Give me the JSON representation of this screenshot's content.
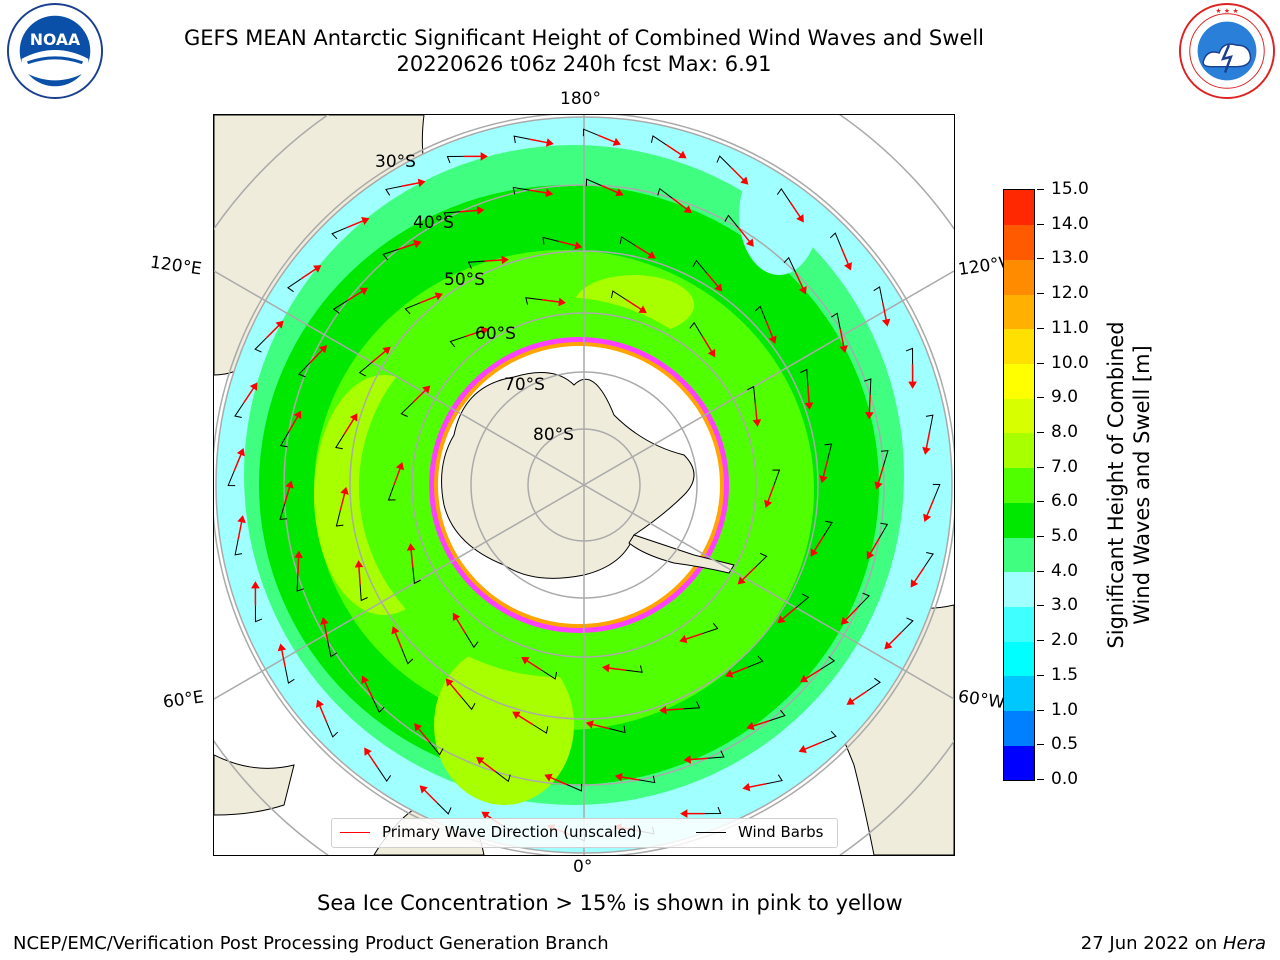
{
  "title": {
    "line1": "GEFS MEAN Antarctic Significant Height of Combined Wind Waves and Swell",
    "line2": "20220626 t06z 240h fcst   Max: 6.91"
  },
  "logos": {
    "left": {
      "icon": "noaa-logo",
      "text": "NOAA"
    },
    "right": {
      "icon": "nws-logo"
    }
  },
  "map": {
    "projection": "south-polar-stereographic",
    "longitude_labels": {
      "top": "180°",
      "bottom": "0°",
      "upper_left": "120°E",
      "upper_right": "120°W",
      "lower_left": "60°E",
      "lower_right": "60°W"
    },
    "latitude_labels": [
      "30°S",
      "40°S",
      "50°S",
      "60°S",
      "70°S",
      "80°S"
    ],
    "land_color": "#efecdc",
    "sea_ice_colors": [
      "#ff40ff",
      "#ffa500",
      "#ffff00"
    ]
  },
  "legend": {
    "items": [
      {
        "label": "Primary Wave Direction (unscaled)",
        "color": "#ff0000"
      },
      {
        "label": "Wind Barbs",
        "color": "#000000"
      }
    ]
  },
  "colorbar": {
    "title_line1": "Significant Height of Combined",
    "title_line2": "Wind Waves and Swell [m]",
    "ticks": [
      "0.0",
      "0.5",
      "1.0",
      "1.5",
      "2.0",
      "3.0",
      "4.0",
      "5.0",
      "6.0",
      "7.0",
      "8.0",
      "9.0",
      "10.0",
      "11.0",
      "12.0",
      "13.0",
      "14.0",
      "15.0"
    ],
    "colors": [
      "#0000ff",
      "#0080ff",
      "#00c8ff",
      "#00ffff",
      "#40ffff",
      "#a0ffff",
      "#40ff80",
      "#00e800",
      "#50ff00",
      "#a8ff00",
      "#d8ff00",
      "#ffff00",
      "#ffe000",
      "#ffb000",
      "#ff8c00",
      "#ff5a00",
      "#ff2800",
      "#ff0000"
    ]
  },
  "subcaption": "Sea Ice Concentration > 15% is shown in pink to yellow",
  "footer": {
    "left": "NCEP/EMC/Verification Post Processing Product Generation Branch",
    "right_prefix": "27 Jun 2022 on ",
    "right_host": "Hera"
  }
}
